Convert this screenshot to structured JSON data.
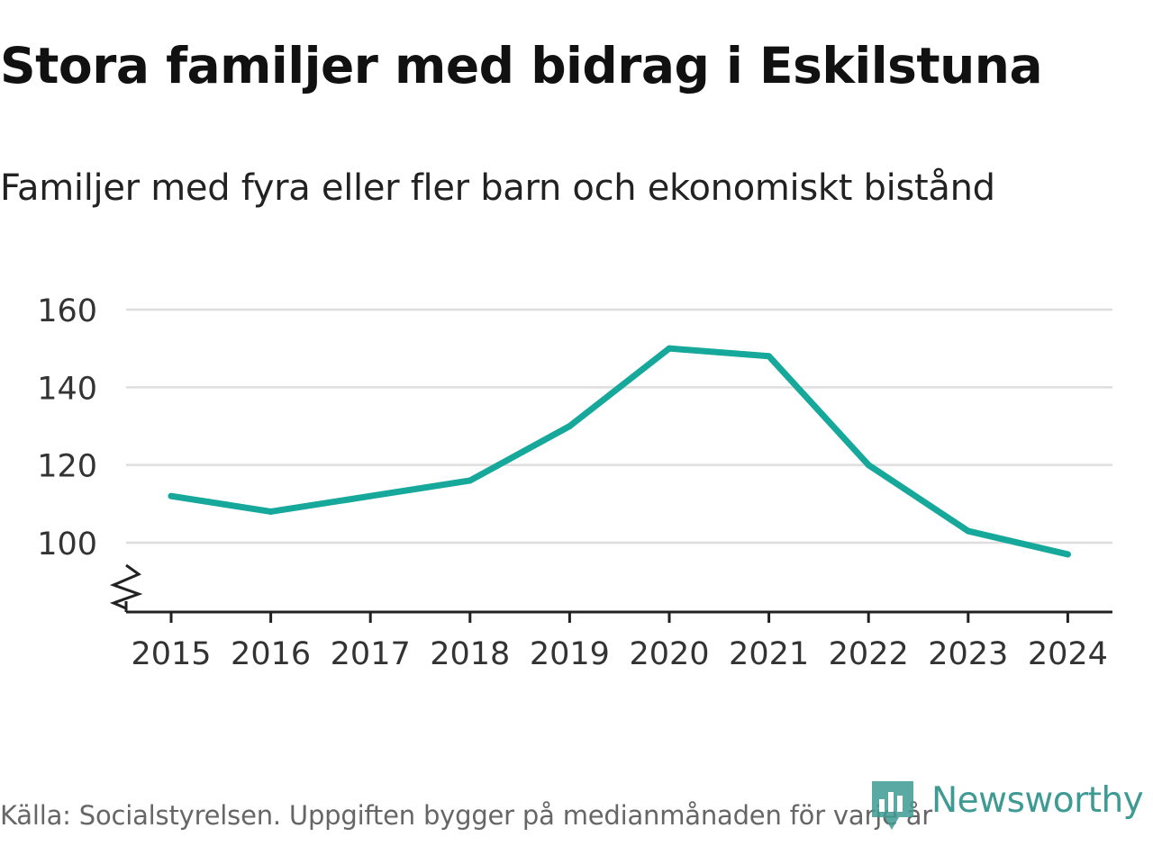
{
  "header": {
    "title": "Stora familjer med bidrag i Eskilstuna",
    "subtitle": "Familjer med fyra eller fler barn och ekonomiskt bistånd"
  },
  "footer": {
    "source": "Källa: Socialstyrelsen. Uppgiften bygger på medianmånaden för varje år",
    "brand": "Newsworthy"
  },
  "colors": {
    "line": "#16a89b",
    "grid": "#dedede",
    "axis": "#222222",
    "brand": "#3e9a93"
  },
  "icons": [
    "newsworthy-logo-icon",
    "axis-break-icon"
  ],
  "chart_data": {
    "type": "line",
    "title": "Stora familjer med bidrag i Eskilstuna",
    "subtitle": "Familjer med fyra eller fler barn och ekonomiskt bistånd",
    "xlabel": "",
    "ylabel": "",
    "categories": [
      "2015",
      "2016",
      "2017",
      "2018",
      "2019",
      "2020",
      "2021",
      "2022",
      "2023",
      "2024"
    ],
    "series": [
      {
        "values": [
          112,
          108,
          112,
          116,
          130,
          150,
          148,
          120,
          103,
          97
        ]
      }
    ],
    "y_ticks": [
      "100",
      "120",
      "140",
      "160"
    ],
    "ylim": [
      82.5,
      160
    ],
    "y_axis_break": true,
    "grid": true,
    "legend": "none"
  }
}
